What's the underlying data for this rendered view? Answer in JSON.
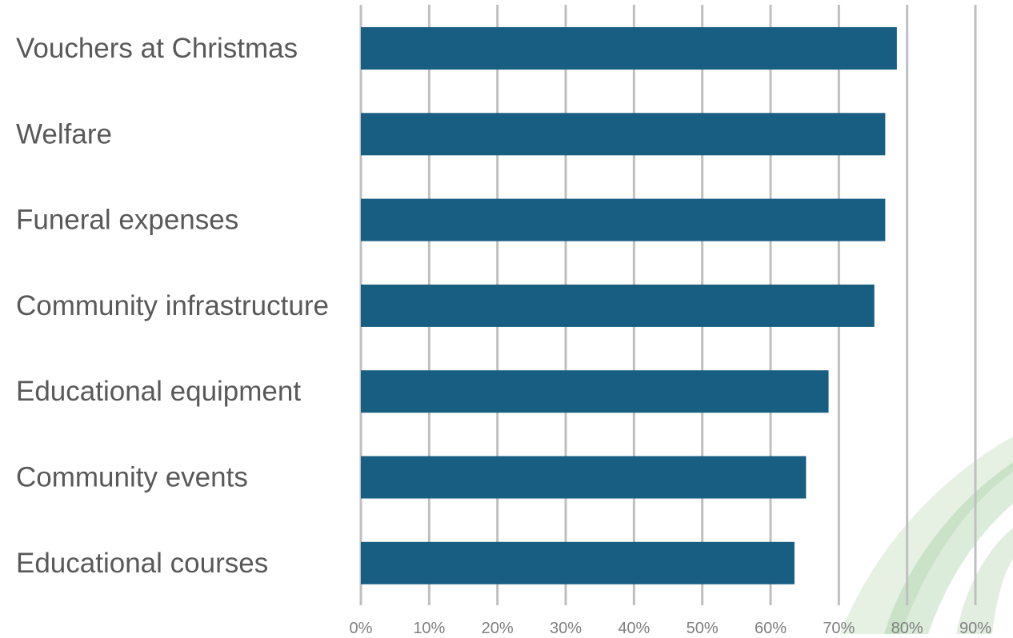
{
  "chart_data": {
    "type": "bar",
    "orientation": "horizontal",
    "title": "",
    "xlabel": "",
    "ylabel": "",
    "categories": [
      "Vouchers at Christmas",
      "Welfare",
      "Funeral expenses",
      "Community infrastructure",
      "Educational equipment",
      "Community events",
      "Educational courses"
    ],
    "values": [
      78.5,
      76.8,
      76.8,
      75.2,
      68.5,
      65.2,
      63.5
    ],
    "value_unit": "%",
    "xlim": [
      0,
      90
    ],
    "xticks": [
      0,
      10,
      20,
      30,
      40,
      50,
      60,
      70,
      80,
      90
    ],
    "xtick_labels": [
      "0%",
      "10%",
      "20%",
      "30%",
      "40%",
      "50%",
      "60%",
      "70%",
      "80%",
      "90%"
    ],
    "grid": "vertical",
    "legend": "none",
    "colors": {
      "bar": "#175e82",
      "grid": "#bfbfbf",
      "category_text": "#595959",
      "tick_text": "#808080",
      "decoration": "#8cc084"
    }
  }
}
